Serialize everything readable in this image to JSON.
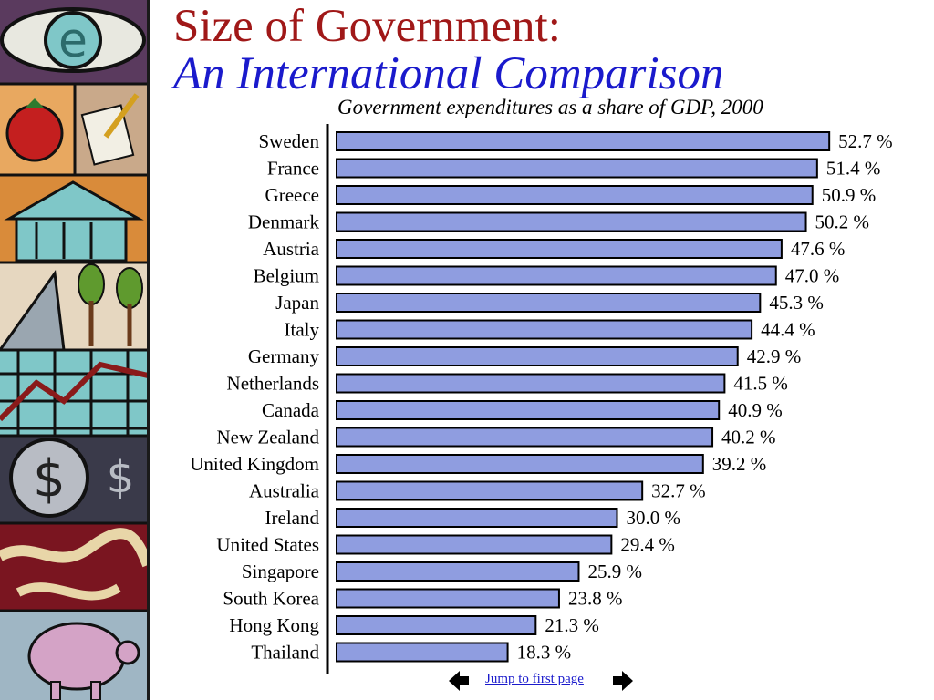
{
  "slide": {
    "title_line1": "Size of Government:",
    "title_line2": "An International Comparison",
    "subtitle": "Government expenditures as a share of GDP, 2000"
  },
  "colors": {
    "title_red": "#a01818",
    "title_blue": "#1a1acc",
    "bar_fill": "#8f9de0",
    "bar_stroke": "#000000",
    "link": "#1a1acc"
  },
  "nav": {
    "jump_label": "Jump to first page",
    "prev_icon": "arrow-left-icon",
    "next_icon": "arrow-right-icon"
  },
  "art_strip": {
    "icons": [
      "eye-icon",
      "tomato-icon",
      "document-pen-icon",
      "bank-building-icon",
      "trees-icon",
      "line-graph-icon",
      "dollar-coin-icon",
      "snake-rope-icon",
      "piggy-bank-icon"
    ]
  },
  "chart_data": {
    "type": "bar",
    "orientation": "horizontal",
    "title": "Government expenditures as a share of GDP, 2000",
    "categories": [
      "Sweden",
      "France",
      "Greece",
      "Denmark",
      "Austria",
      "Belgium",
      "Japan",
      "Italy",
      "Germany",
      "Netherlands",
      "Canada",
      "New Zealand",
      "United Kingdom",
      "Australia",
      "Ireland",
      "United States",
      "Singapore",
      "South Korea",
      "Hong Kong",
      "Thailand"
    ],
    "values": [
      52.7,
      51.4,
      50.9,
      50.2,
      47.6,
      47.0,
      45.3,
      44.4,
      42.9,
      41.5,
      40.9,
      40.2,
      39.2,
      32.7,
      30.0,
      29.4,
      25.9,
      23.8,
      21.3,
      18.3
    ],
    "value_labels": [
      "52.7 %",
      "51.4 %",
      "50.9 %",
      "50.2 %",
      "47.6 %",
      "47.0 %",
      "45.3 %",
      "44.4 %",
      "42.9 %",
      "41.5 %",
      "40.9 %",
      "40.2 %",
      "39.2 %",
      "32.7 %",
      "30.0 %",
      "29.4 %",
      "25.9 %",
      "23.8 %",
      "21.3 %",
      "18.3 %"
    ],
    "xlabel": "",
    "ylabel": "",
    "xlim": [
      0,
      60
    ],
    "grid": false,
    "legend": "none"
  }
}
